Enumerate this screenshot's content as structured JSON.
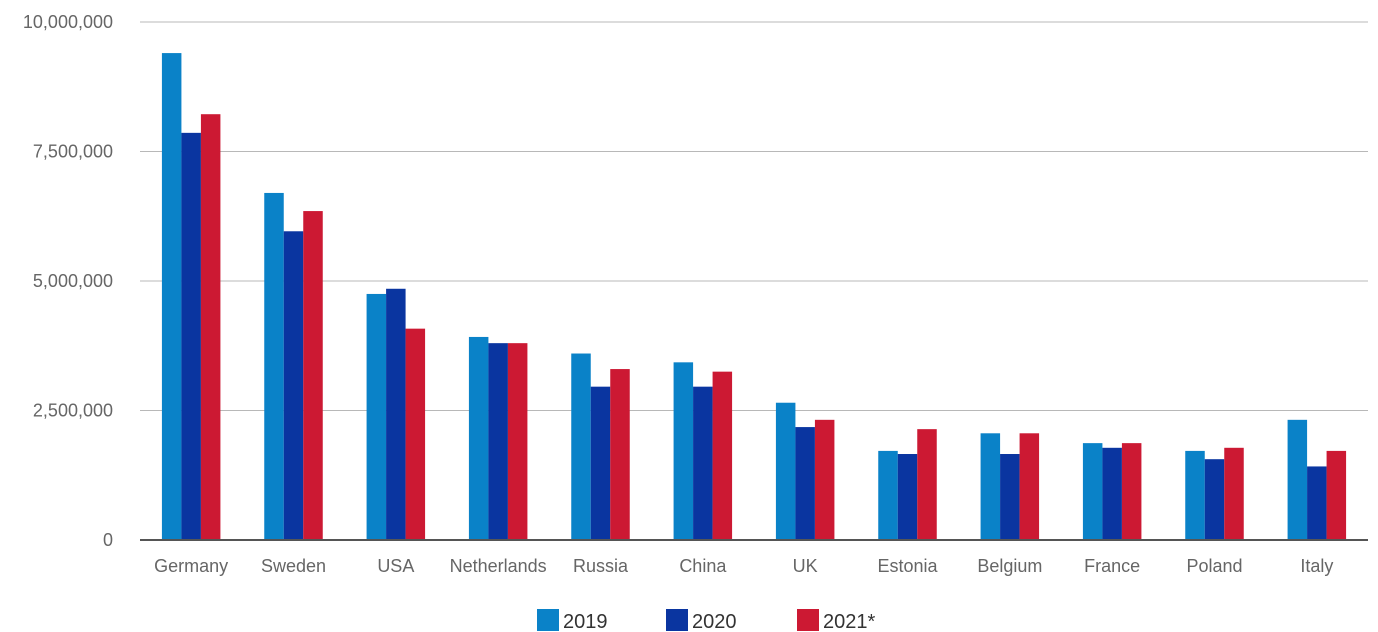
{
  "chart_data": {
    "type": "bar",
    "title": "",
    "xlabel": "",
    "ylabel": "",
    "ylim": [
      0,
      10000000
    ],
    "y_ticks": [
      "0",
      "2,500,000",
      "5,000,000",
      "7,500,000",
      "10,000,000"
    ],
    "y_tick_values": [
      0,
      2500000,
      5000000,
      7500000,
      10000000
    ],
    "grid": true,
    "legend_position": "bottom-center",
    "categories": [
      "Germany",
      "Sweden",
      "USA",
      "Netherlands",
      "Russia",
      "China",
      "UK",
      "Estonia",
      "Belgium",
      "France",
      "Poland",
      "Italy"
    ],
    "series": [
      {
        "name": "2019",
        "color": "#0a82c8",
        "values": [
          9400000,
          6700000,
          4750000,
          3920000,
          3600000,
          3430000,
          2650000,
          1720000,
          2060000,
          1870000,
          1720000,
          2320000
        ]
      },
      {
        "name": "2020",
        "color": "#0a35a0",
        "values": [
          7860000,
          5960000,
          4850000,
          3800000,
          2960000,
          2960000,
          2180000,
          1660000,
          1660000,
          1780000,
          1560000,
          1420000
        ]
      },
      {
        "name": "2021*",
        "color": "#cc1933",
        "values": [
          8220000,
          6350000,
          4080000,
          3800000,
          3300000,
          3250000,
          2320000,
          2140000,
          2060000,
          1870000,
          1780000,
          1720000
        ]
      }
    ]
  }
}
